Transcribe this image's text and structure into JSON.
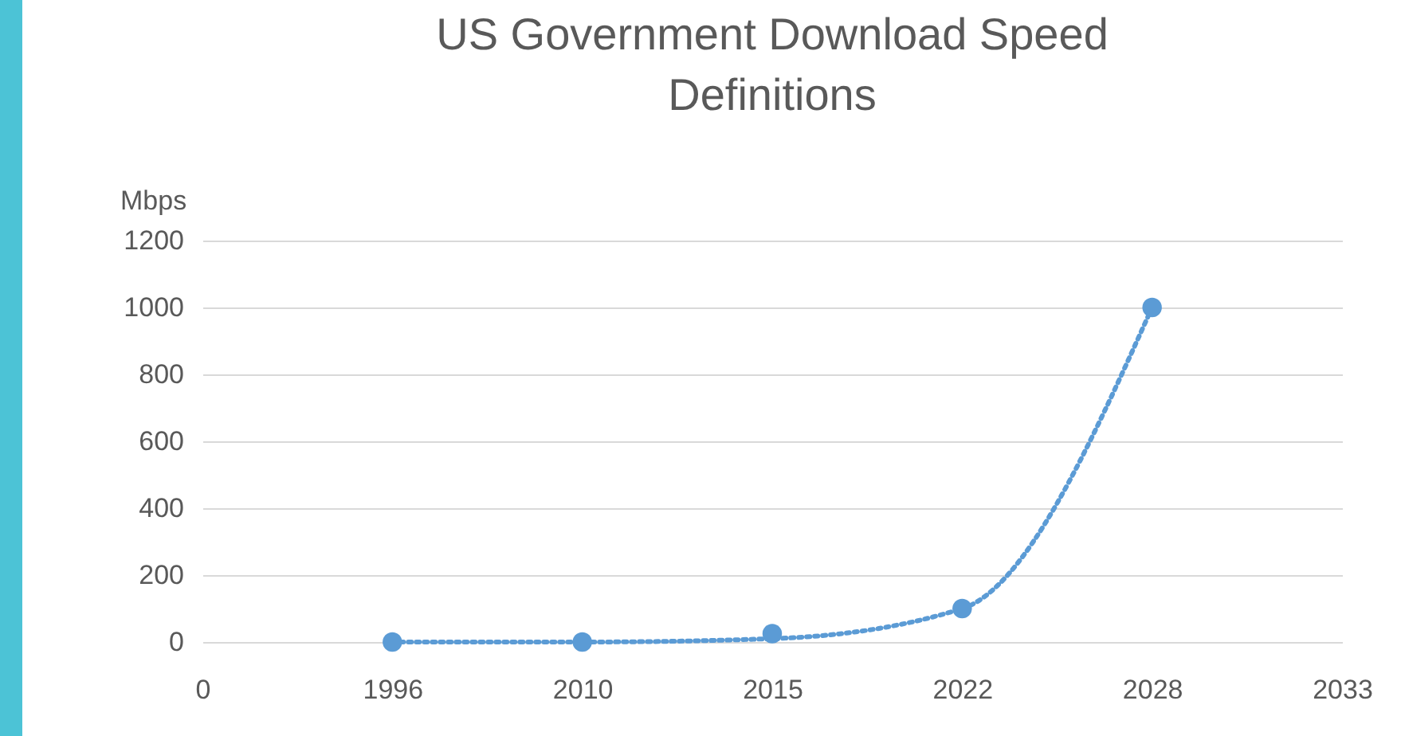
{
  "chart_data": {
    "type": "scatter",
    "title": "US Government Download Speed Definitions",
    "ylabel": "Mbps",
    "categories": [
      "0",
      "1996",
      "2010",
      "2015",
      "2022",
      "2028",
      "2033"
    ],
    "ylim": [
      0,
      1200
    ],
    "yticks": [
      0,
      200,
      400,
      600,
      800,
      1000,
      1200
    ],
    "grid": "y",
    "legend": false,
    "marker": "circle",
    "series": [
      {
        "color": "#5b9bd5",
        "values": [
          null,
          0,
          0,
          25,
          100,
          1000,
          null
        ]
      },
      {
        "type": "line",
        "color": "#5b9bd5",
        "line_style": "dotted",
        "marker": "none",
        "values": [
          null,
          0,
          0,
          10,
          100,
          1000,
          null
        ]
      }
    ]
  }
}
